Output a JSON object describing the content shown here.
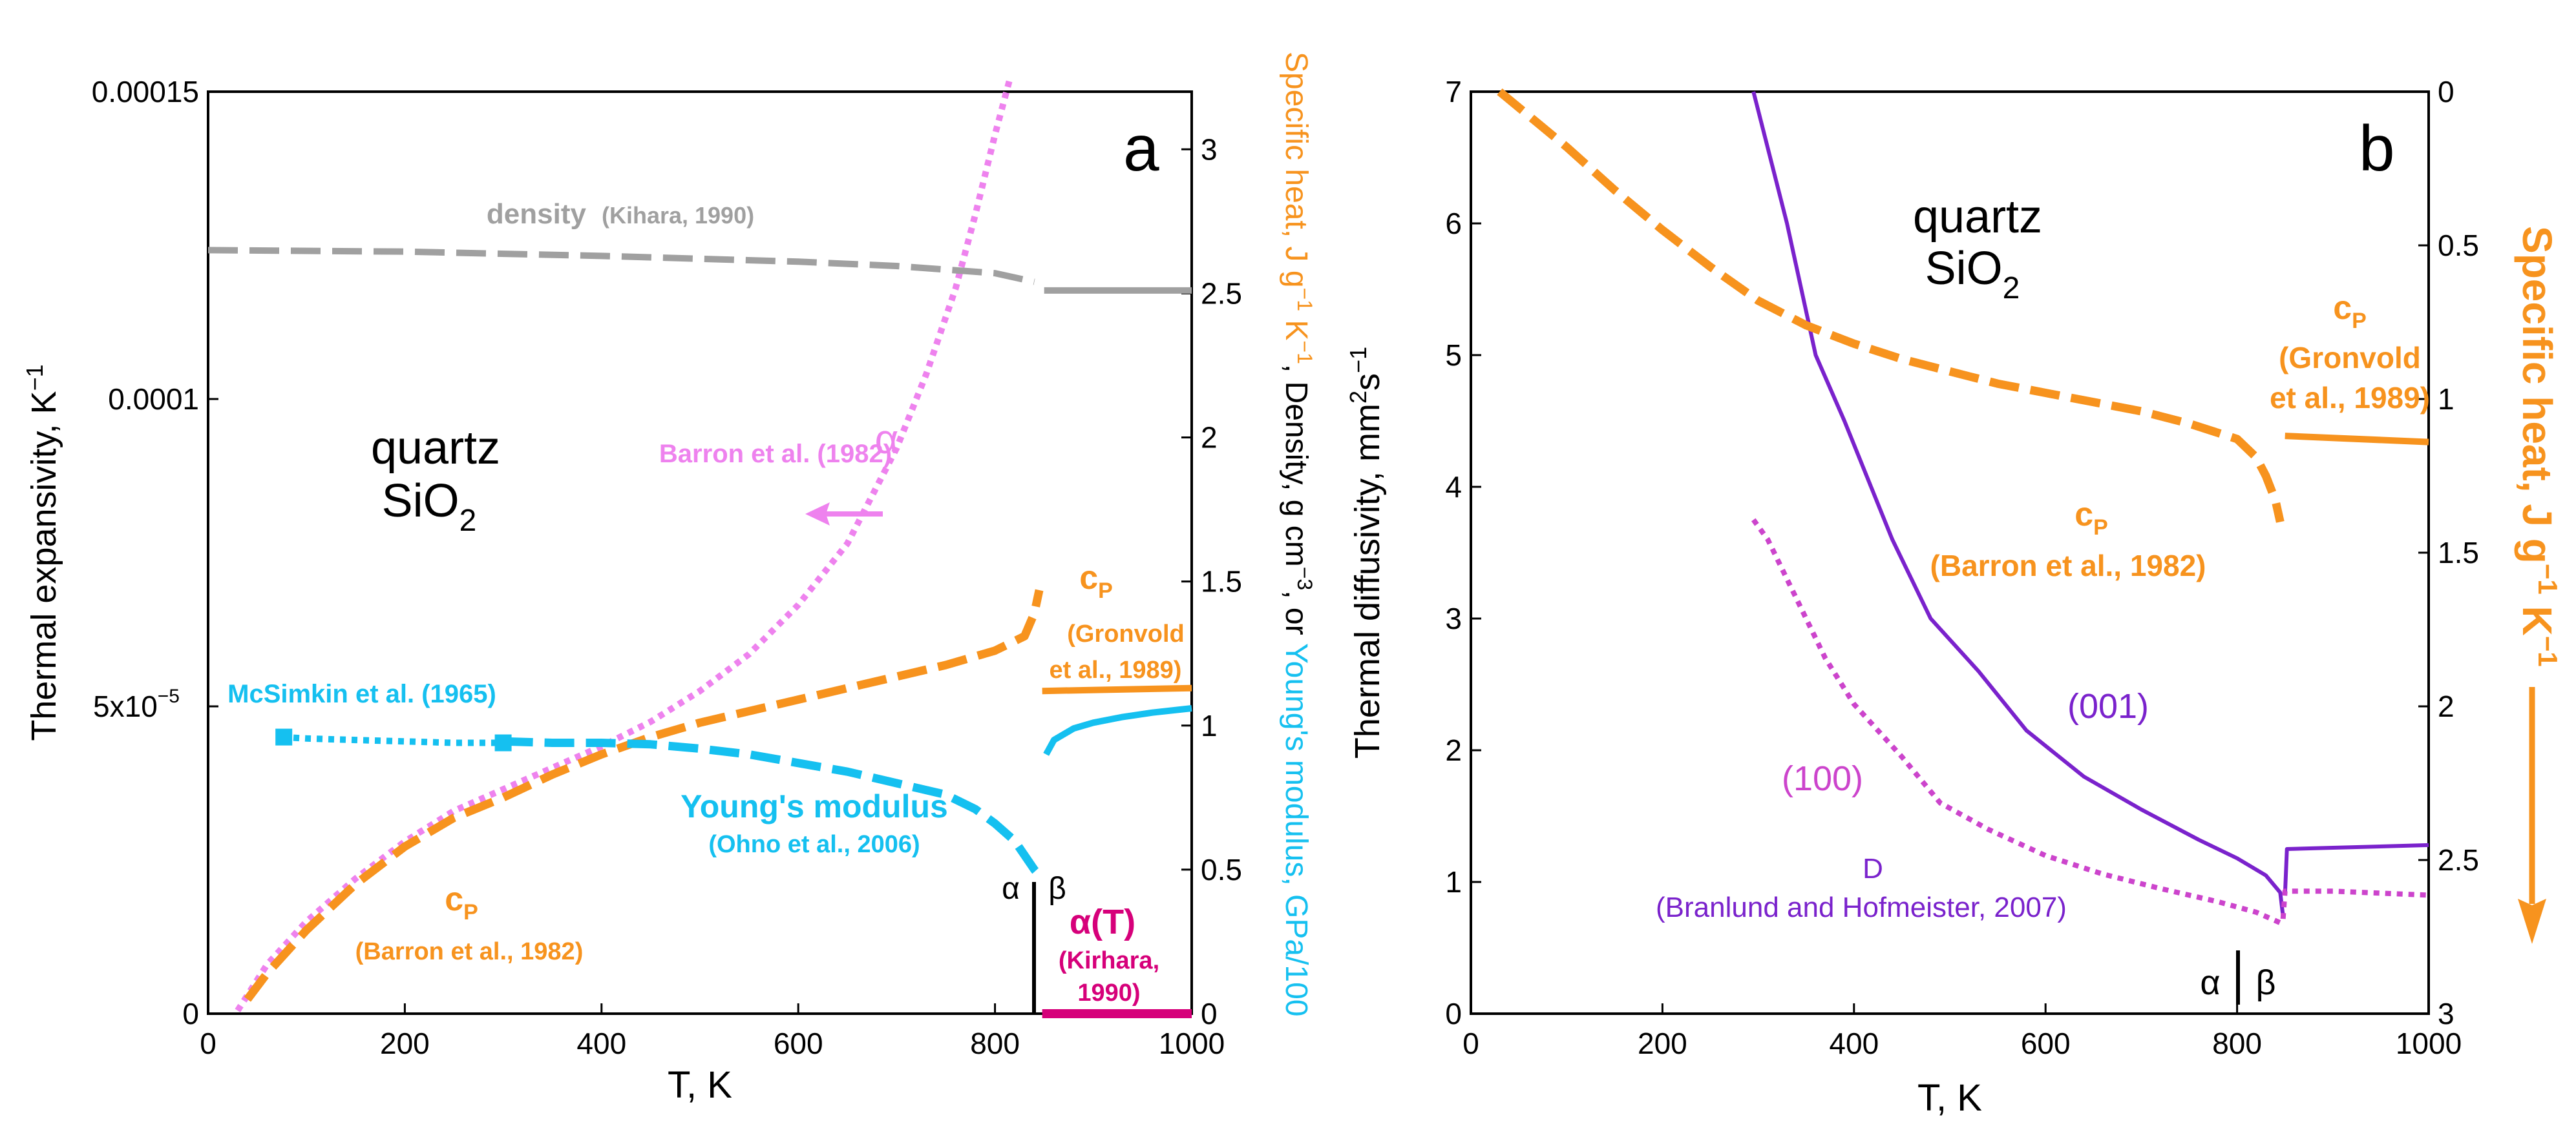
{
  "chart_data": [
    {
      "type": "line",
      "panel_label": "a",
      "xlabel": "T, K",
      "ylabel": "Thermal expansivity, K",
      "ylabel_sup": "−1",
      "y2label_parts": [
        "Specific heat, J g",
        "−1",
        " K",
        "−1",
        ", Density, g cm",
        "−3",
        ", or ",
        "Young's modulus, GPa/100"
      ],
      "xlim": [
        0,
        1000
      ],
      "ylim": [
        0,
        0.00015
      ],
      "y2lim": [
        0,
        3.2
      ],
      "x_ticks": [
        "0",
        "200",
        "400",
        "600",
        "800",
        "1000"
      ],
      "y_ticks": [
        "0",
        "5x10",
        "0.0001",
        "0.00015"
      ],
      "y_tick_5e5_sup": "−5",
      "y2_ticks": [
        "0",
        "0.5",
        "1",
        "1.5",
        "2",
        "2.5",
        "3"
      ],
      "colors": {
        "alpha": "#ee82ee",
        "cp": "#f7931e",
        "density": "#a0a0a0",
        "young": "#15c0f0",
        "alphaT": "#d6007a",
        "axis": "#000000"
      },
      "annotations": {
        "title_line1": "quartz",
        "title_main": "SiO",
        "title_sub": "2",
        "alpha_symbol": "α",
        "alpha_source": "Barron et al. (1982)",
        "density_label": "density",
        "density_source": "(Kihara, 1990)",
        "mcsimkin": "McSimkin et al. (1965)",
        "young_label": "Young's modulus",
        "young_source": "(Ohno et al., 2006)",
        "cp_c": "c",
        "cp_sub": "P",
        "cp_barron": "(Barron et al.,  1982)",
        "cp_gron1": "(Gronvold",
        "cp_gron2": "et al., 1989)",
        "alphaT_label": "α(T)",
        "alphaT_source1": "(Kirhara,",
        "alphaT_source2": "1990)",
        "phase_alpha": "α",
        "phase_beta": "β"
      },
      "series": [
        {
          "name": "thermal expansivity α (Barron et al. 1982)",
          "axis": "left",
          "style": "dotted",
          "x": [
            30,
            60,
            100,
            150,
            200,
            250,
            300,
            350,
            400,
            450,
            500,
            550,
            600,
            650,
            700,
            730,
            760,
            780,
            800,
            815
          ],
          "y": [
            5e-07,
            8e-06,
            1.5e-05,
            2.2e-05,
            2.8e-05,
            3.3e-05,
            3.65e-05,
            4e-05,
            4.35e-05,
            4.75e-05,
            5.25e-05,
            5.85e-05,
            6.65e-05,
            7.65e-05,
            9.2e-05,
            0.000104,
            0.000118,
            0.00013,
            0.000143,
            0.000152
          ]
        },
        {
          "name": "specific heat cP (Barron et al. 1982)",
          "axis": "right",
          "style": "dashed",
          "x": [
            40,
            60,
            100,
            150,
            200,
            250,
            300,
            350,
            400,
            450,
            500,
            550,
            600,
            650,
            700,
            750,
            800,
            830,
            840,
            845
          ],
          "y": [
            0.05,
            0.14,
            0.29,
            0.45,
            0.58,
            0.68,
            0.75,
            0.83,
            0.9,
            0.96,
            1.01,
            1.05,
            1.09,
            1.13,
            1.17,
            1.21,
            1.26,
            1.31,
            1.39,
            1.47
          ]
        },
        {
          "name": "specific heat cP (Gronvold et al. 1989)",
          "axis": "right",
          "style": "solid",
          "x": [
            848,
            1000
          ],
          "y": [
            1.12,
            1.13
          ]
        },
        {
          "name": "density (Kihara 1990)",
          "axis": "right",
          "style": "dashed",
          "x": [
            0,
            200,
            400,
            600,
            700,
            800,
            840
          ],
          "y": [
            2.65,
            2.645,
            2.63,
            2.61,
            2.595,
            2.57,
            2.54
          ]
        },
        {
          "name": "density (Kihara 1990) beta",
          "axis": "right",
          "style": "solid",
          "x": [
            850,
            1000
          ],
          "y": [
            2.51,
            2.51
          ]
        },
        {
          "name": "Young's modulus (McSimkin et al. 1965)",
          "axis": "right",
          "style": "dotted",
          "x": [
            75,
            100,
            150,
            200,
            250,
            300
          ],
          "y": [
            0.96,
            0.955,
            0.95,
            0.945,
            0.94,
            0.94
          ]
        },
        {
          "name": "Young's modulus (Ohno et al. 2006)",
          "axis": "right",
          "style": "dashed",
          "x": [
            300,
            350,
            400,
            450,
            500,
            550,
            600,
            650,
            700,
            750,
            780,
            800,
            820,
            830,
            840,
            848
          ],
          "y": [
            0.945,
            0.94,
            0.94,
            0.935,
            0.92,
            0.9,
            0.87,
            0.84,
            0.8,
            0.76,
            0.71,
            0.66,
            0.6,
            0.55,
            0.5,
            0.47
          ]
        },
        {
          "name": "Young's modulus beta",
          "axis": "right",
          "style": "solid",
          "x": [
            852,
            860,
            880,
            900,
            930,
            960,
            1000
          ],
          "y": [
            0.9,
            0.95,
            0.99,
            1.01,
            1.03,
            1.045,
            1.06
          ]
        },
        {
          "name": "α(T) beta (Kirhara 1990)",
          "axis": "left",
          "style": "solid",
          "x": [
            848,
            1000
          ],
          "y": [
            0,
            0
          ]
        }
      ],
      "markers": {
        "name": "McSimkin points",
        "x": [
          77,
          300
        ],
        "y": [
          0.96,
          0.94
        ]
      },
      "phase_boundary_x": 846
    },
    {
      "type": "line",
      "panel_label": "b",
      "xlabel": "T, K",
      "ylabel_parts": [
        "Thermal diffusivity, mm",
        "2",
        "s",
        "−1"
      ],
      "y2label_parts": [
        "Specific heat, J g",
        "−1",
        " K",
        "−1"
      ],
      "xlim": [
        0,
        1000
      ],
      "ylim": [
        0,
        7
      ],
      "y2lim_inverted": [
        0,
        3
      ],
      "x_ticks": [
        "0",
        "200",
        "400",
        "600",
        "800",
        "1000"
      ],
      "y_ticks": [
        "0",
        "1",
        "2",
        "3",
        "4",
        "5",
        "6",
        "7"
      ],
      "y2_ticks": [
        "0",
        "0.5",
        "1",
        "1.5",
        "2",
        "2.5",
        "3"
      ],
      "colors": {
        "d001": "#7a22cc",
        "d100": "#cc44cc",
        "cp": "#f7931e",
        "axis": "#000000"
      },
      "annotations": {
        "title_line1": "quartz",
        "title_main": "SiO",
        "title_sub": "2",
        "label_001": "(001)",
        "label_100": "(100)",
        "d_label": "D",
        "d_source": "(Branlund and Hofmeister, 2007)",
        "cp_c": "c",
        "cp_sub": "P",
        "cp_barron": "(Barron et al.,  1982)",
        "cp_gron1": "(Gronvold",
        "cp_gron2": "et al., 1989)",
        "phase_alpha": "α",
        "phase_beta": "β"
      },
      "series": [
        {
          "name": "D (001)",
          "axis": "left",
          "style": "solid",
          "x": [
            295,
            330,
            360,
            390,
            440,
            480,
            530,
            580,
            640,
            700,
            760,
            800,
            830,
            845,
            848
          ],
          "y": [
            7.0,
            6.0,
            5.0,
            4.5,
            3.6,
            3.0,
            2.6,
            2.15,
            1.8,
            1.55,
            1.32,
            1.18,
            1.05,
            0.92,
            0.74
          ]
        },
        {
          "name": "D (001) beta",
          "axis": "left",
          "style": "solid",
          "x": [
            850,
            852,
            900,
            1000
          ],
          "y": [
            0.9,
            1.25,
            1.26,
            1.28
          ]
        },
        {
          "name": "D (100)",
          "axis": "left",
          "style": "dotted",
          "x": [
            295,
            310,
            340,
            370,
            400,
            450,
            490,
            540,
            600,
            660,
            720,
            780,
            820,
            845
          ],
          "y": [
            3.75,
            3.6,
            3.15,
            2.7,
            2.35,
            1.95,
            1.6,
            1.4,
            1.2,
            1.06,
            0.95,
            0.85,
            0.77,
            0.69
          ]
        },
        {
          "name": "D (100) beta",
          "axis": "left",
          "style": "dotted",
          "x": [
            848,
            850,
            900,
            1000
          ],
          "y": [
            0.72,
            0.93,
            0.93,
            0.9
          ]
        },
        {
          "name": "specific heat cP (Barron et al. 1982)",
          "axis": "right",
          "style": "dashed",
          "x": [
            30,
            100,
            150,
            200,
            250,
            300,
            350,
            400,
            450,
            500,
            550,
            600,
            650,
            700,
            750,
            800,
            820,
            830,
            840,
            845
          ],
          "y": [
            0.0,
            0.18,
            0.32,
            0.45,
            0.57,
            0.68,
            0.76,
            0.82,
            0.87,
            0.91,
            0.95,
            0.98,
            1.01,
            1.04,
            1.08,
            1.13,
            1.19,
            1.25,
            1.33,
            1.4
          ]
        },
        {
          "name": "specific heat cP (Gronvold et al. 1989)",
          "axis": "right",
          "style": "solid",
          "x": [
            850,
            1000
          ],
          "y": [
            1.12,
            1.14
          ]
        }
      ],
      "phase_boundary_x": 800
    }
  ]
}
